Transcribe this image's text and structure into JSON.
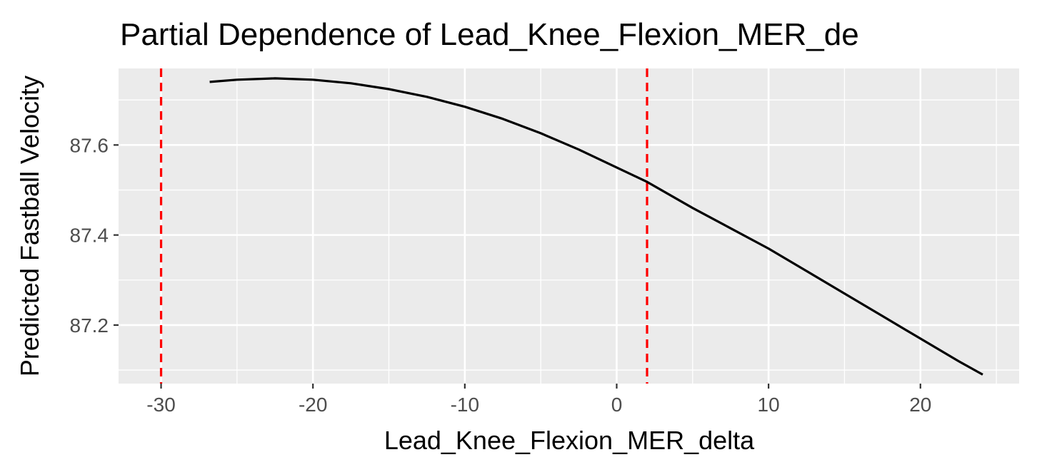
{
  "chart_data": {
    "type": "line",
    "title": "Partial Dependence of Lead_Knee_Flexion_MER_de",
    "xlabel": "Lead_Knee_Flexion_MER_delta",
    "ylabel": "Predicted Fastball Velocity",
    "xlim": [
      -32.8,
      26.5
    ],
    "ylim": [
      87.07,
      87.77
    ],
    "x_ticks": [
      -30,
      -20,
      -10,
      0,
      10,
      20
    ],
    "x_tick_labels": [
      "-30",
      "-20",
      "-10",
      "0",
      "10",
      "20"
    ],
    "y_ticks": [
      87.2,
      87.4,
      87.6
    ],
    "y_tick_labels": [
      "87.2",
      "87.4",
      "87.6"
    ],
    "grid": true,
    "background": "#ebebeb",
    "series": [
      {
        "color": "#000000",
        "x": [
          -26.8,
          -25,
          -22.5,
          -20,
          -17.5,
          -15,
          -12.5,
          -10,
          -7.5,
          -5,
          -2.5,
          0,
          2,
          5,
          7.5,
          10,
          12.5,
          15,
          17.5,
          20,
          22.5,
          24.1
        ],
        "y": [
          87.74,
          87.745,
          87.748,
          87.745,
          87.737,
          87.724,
          87.707,
          87.685,
          87.658,
          87.626,
          87.59,
          87.55,
          87.518,
          87.46,
          87.415,
          87.37,
          87.32,
          87.27,
          87.22,
          87.17,
          87.12,
          87.09
        ]
      }
    ],
    "reference_lines": [
      {
        "axis": "x",
        "value": -30,
        "color": "#ff0000",
        "style": "dashed"
      },
      {
        "axis": "x",
        "value": 2,
        "color": "#ff0000",
        "style": "dashed"
      }
    ]
  }
}
